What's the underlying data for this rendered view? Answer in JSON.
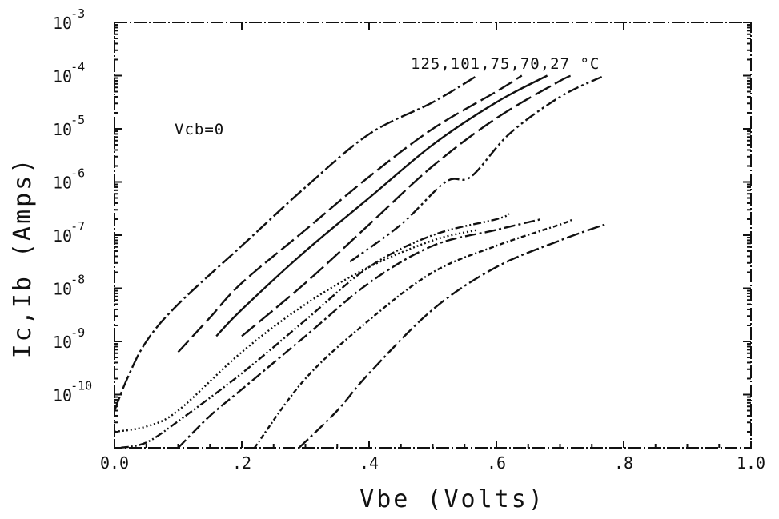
{
  "chart_data": {
    "type": "line",
    "xlabel": "Vbe (Volts)",
    "ylabel": "Ic,Ib (Amps)",
    "xlim": [
      0.0,
      1.0
    ],
    "ylim_log10": [
      -11,
      -3
    ],
    "y_scale": "log",
    "grid": false,
    "x_ticks": [
      {
        "value": 0.0,
        "label": "0.0"
      },
      {
        "value": 0.2,
        "label": ".2"
      },
      {
        "value": 0.4,
        "label": ".4"
      },
      {
        "value": 0.6,
        "label": ".6"
      },
      {
        "value": 0.8,
        "label": ".8"
      },
      {
        "value": 1.0,
        "label": "1.0"
      }
    ],
    "y_ticks": [
      {
        "value": -3,
        "base": "10",
        "exp": "-3"
      },
      {
        "value": -4,
        "base": "10",
        "exp": "-4"
      },
      {
        "value": -5,
        "base": "10",
        "exp": "-5"
      },
      {
        "value": -6,
        "base": "10",
        "exp": "-6"
      },
      {
        "value": -7,
        "base": "10",
        "exp": "-7"
      },
      {
        "value": -8,
        "base": "10",
        "exp": "-8"
      },
      {
        "value": -9,
        "base": "10",
        "exp": "-9"
      },
      {
        "value": -10,
        "base": "10",
        "exp": "-10"
      }
    ],
    "annotations": {
      "temperatures": "125,101,75,70,27 °C",
      "condition": "Vcb=0"
    },
    "series": [
      {
        "group": "Ic",
        "dash": "18 4 3 4",
        "points": [
          [
            0.0,
            -10.3
          ],
          [
            0.02,
            -9.7
          ],
          [
            0.05,
            -9.0
          ],
          [
            0.1,
            -8.3
          ],
          [
            0.2,
            -7.2
          ],
          [
            0.3,
            -6.1
          ],
          [
            0.4,
            -5.1
          ],
          [
            0.5,
            -4.5
          ],
          [
            0.57,
            -4.0
          ]
        ]
      },
      {
        "group": "Ic",
        "dash": "20 6",
        "points": [
          [
            0.1,
            -9.2
          ],
          [
            0.15,
            -8.55
          ],
          [
            0.2,
            -7.9
          ],
          [
            0.3,
            -6.9
          ],
          [
            0.4,
            -5.9
          ],
          [
            0.5,
            -5.0
          ],
          [
            0.6,
            -4.3
          ],
          [
            0.64,
            -4.0
          ]
        ]
      },
      {
        "group": "Ic",
        "dash": "none",
        "points": [
          [
            0.16,
            -8.9
          ],
          [
            0.2,
            -8.4
          ],
          [
            0.3,
            -7.3
          ],
          [
            0.4,
            -6.3
          ],
          [
            0.5,
            -5.3
          ],
          [
            0.6,
            -4.5
          ],
          [
            0.68,
            -4.0
          ]
        ]
      },
      {
        "group": "Ic",
        "dash": "22 6",
        "points": [
          [
            0.2,
            -8.9
          ],
          [
            0.3,
            -7.9
          ],
          [
            0.4,
            -6.8
          ],
          [
            0.5,
            -5.7
          ],
          [
            0.6,
            -4.8
          ],
          [
            0.7,
            -4.1
          ],
          [
            0.72,
            -4.0
          ]
        ]
      },
      {
        "group": "Ic",
        "dash": "14 4 3 4 3 4",
        "points": [
          [
            0.37,
            -7.5
          ],
          [
            0.45,
            -6.8
          ],
          [
            0.52,
            -6.0
          ],
          [
            0.56,
            -5.9
          ],
          [
            0.62,
            -5.1
          ],
          [
            0.7,
            -4.4
          ],
          [
            0.77,
            -4.0
          ]
        ]
      },
      {
        "group": "Ib",
        "dash": "2 3",
        "points": [
          [
            0.0,
            -10.7
          ],
          [
            0.05,
            -10.6
          ],
          [
            0.1,
            -10.3
          ],
          [
            0.2,
            -9.2
          ],
          [
            0.3,
            -8.3
          ],
          [
            0.4,
            -7.6
          ],
          [
            0.5,
            -7.1
          ],
          [
            0.57,
            -6.9
          ]
        ]
      },
      {
        "group": "Ib",
        "dash": "10 3 2 3 2 3",
        "points": [
          [
            0.01,
            -11.0
          ],
          [
            0.05,
            -10.9
          ],
          [
            0.1,
            -10.5
          ],
          [
            0.2,
            -9.6
          ],
          [
            0.3,
            -8.6
          ],
          [
            0.4,
            -7.6
          ],
          [
            0.5,
            -7.0
          ],
          [
            0.6,
            -6.7
          ],
          [
            0.62,
            -6.6
          ]
        ]
      },
      {
        "group": "Ib",
        "dash": "14 4 3 4",
        "points": [
          [
            0.1,
            -11.0
          ],
          [
            0.15,
            -10.4
          ],
          [
            0.2,
            -9.9
          ],
          [
            0.3,
            -8.9
          ],
          [
            0.4,
            -7.9
          ],
          [
            0.5,
            -7.2
          ],
          [
            0.6,
            -6.9
          ],
          [
            0.67,
            -6.7
          ]
        ]
      },
      {
        "group": "Ib",
        "dash": "6 3 2 3",
        "points": [
          [
            0.22,
            -11.0
          ],
          [
            0.3,
            -9.7
          ],
          [
            0.4,
            -8.6
          ],
          [
            0.5,
            -7.7
          ],
          [
            0.6,
            -7.2
          ],
          [
            0.7,
            -6.8
          ],
          [
            0.72,
            -6.7
          ]
        ]
      },
      {
        "group": "Ib",
        "dash": "16 4 3 4",
        "points": [
          [
            0.29,
            -11.0
          ],
          [
            0.35,
            -10.3
          ],
          [
            0.4,
            -9.6
          ],
          [
            0.5,
            -8.4
          ],
          [
            0.6,
            -7.6
          ],
          [
            0.7,
            -7.1
          ],
          [
            0.77,
            -6.8
          ]
        ]
      }
    ]
  }
}
